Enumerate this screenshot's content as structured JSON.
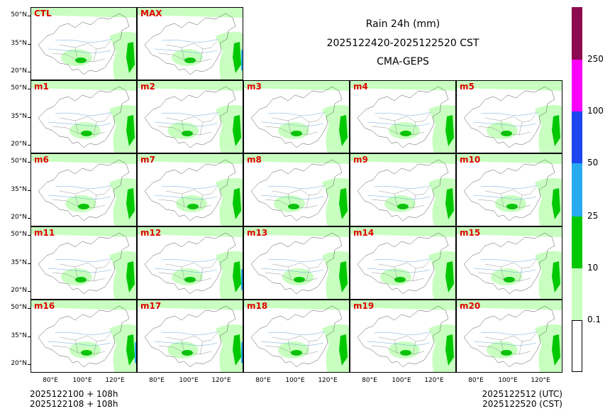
{
  "title": {
    "line1": "Rain 24h (mm)",
    "line2": "2025122420-2025122520 CST",
    "line3": "CMA-GEPS"
  },
  "panels": [
    "CTL",
    "MAX",
    "m1",
    "m2",
    "m3",
    "m4",
    "m5",
    "m6",
    "m7",
    "m8",
    "m9",
    "m10",
    "m11",
    "m12",
    "m13",
    "m14",
    "m15",
    "m16",
    "m17",
    "m18",
    "m19",
    "m20"
  ],
  "lat_ticks": [
    "50°N",
    "35°N",
    "20°N"
  ],
  "lon_ticks": [
    "80°E",
    "100°E",
    "120°E"
  ],
  "colorbar": {
    "levels": [
      "0.1",
      "10",
      "25",
      "50",
      "100",
      "250"
    ],
    "colors": [
      "#ffffff",
      "#c8ffc0",
      "#00c800",
      "#28aaf0",
      "#1e46f0",
      "#ff00ff",
      "#8c0a50"
    ]
  },
  "footer": {
    "left_line1": "2025122100 + 108h",
    "left_line2": "2025122108 + 108h",
    "right_line1": "2025122512 (UTC)",
    "right_line2": "2025122520 (CST)"
  }
}
